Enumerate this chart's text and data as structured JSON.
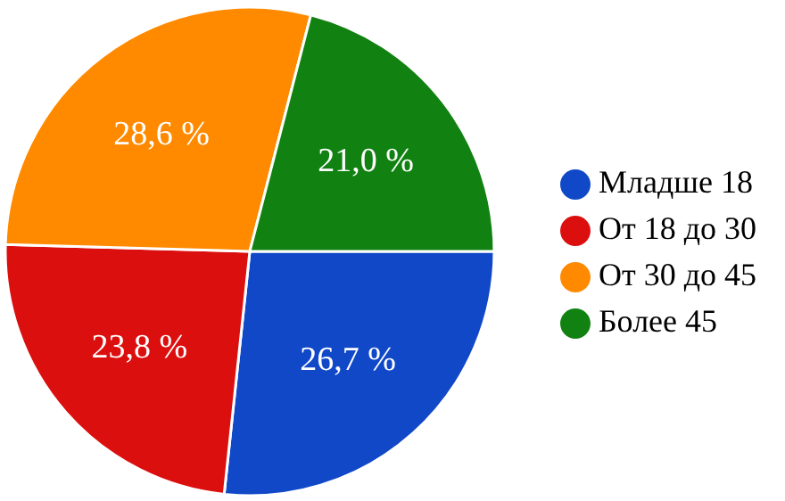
{
  "chart_data": {
    "type": "pie",
    "categories": [
      "Младше 18",
      "От 18 до 30",
      "От 30 до 45",
      "Более 45"
    ],
    "values": [
      26.7,
      23.8,
      28.6,
      21.0
    ],
    "colors": [
      "#1048c8",
      "#dc0f0f",
      "#ff8a00",
      "#118211"
    ],
    "value_labels": [
      "26,7 %",
      "23,8 %",
      "28,6 %",
      "21,0 %"
    ],
    "legend": "right"
  }
}
